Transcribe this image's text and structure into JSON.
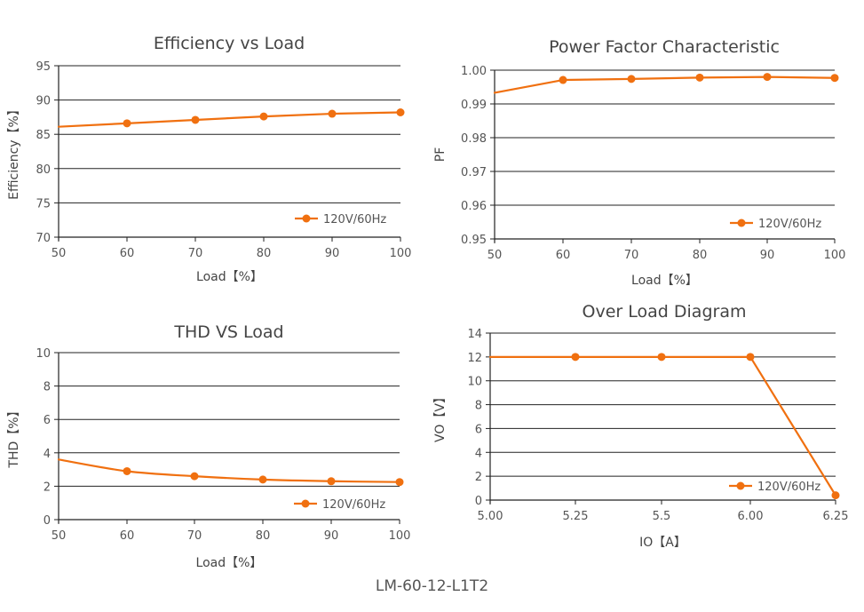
{
  "footer": "LM-60-12-L1T2",
  "accent_color": "#f07010",
  "chart_data": [
    {
      "type": "line",
      "title": "Efficiency vs Load",
      "xlabel": "Load【%】",
      "ylabel": "Efficiency【%】",
      "x": [
        50,
        60,
        70,
        80,
        90,
        100
      ],
      "xticks": [
        50,
        60,
        70,
        80,
        90,
        100
      ],
      "xtick_labels": [
        "50",
        "60",
        "70",
        "80",
        "90",
        "100"
      ],
      "xlim": [
        50,
        100
      ],
      "yticks": [
        70,
        75,
        80,
        85,
        90,
        95
      ],
      "ytick_labels": [
        "70",
        "75",
        "80",
        "85",
        "90",
        "95"
      ],
      "ylim": [
        70,
        95
      ],
      "grid": true,
      "legend_position": "lower-right",
      "series": [
        {
          "name": "120V/60Hz",
          "values": [
            86.1,
            86.6,
            87.1,
            87.6,
            88.0,
            88.2
          ],
          "markers": [
            false,
            true,
            true,
            true,
            true,
            true
          ]
        }
      ]
    },
    {
      "type": "line",
      "title": "Power Factor Characteristic",
      "xlabel": "Load【%】",
      "ylabel": "PF",
      "x": [
        50,
        60,
        70,
        80,
        90,
        100
      ],
      "xticks": [
        50,
        60,
        70,
        80,
        90,
        100
      ],
      "xtick_labels": [
        "50",
        "60",
        "70",
        "80",
        "90",
        "100"
      ],
      "xlim": [
        50,
        100
      ],
      "yticks": [
        0.95,
        0.96,
        0.97,
        0.98,
        0.99,
        1.0
      ],
      "ytick_labels": [
        "0.95",
        "0.96",
        "0.97",
        "0.98",
        "0.99",
        "1.00"
      ],
      "ylim": [
        0.95,
        1.0
      ],
      "grid": true,
      "legend_position": "lower-right",
      "series": [
        {
          "name": "120V/60Hz",
          "values": [
            0.9933,
            0.9971,
            0.9974,
            0.9978,
            0.998,
            0.9977
          ],
          "markers": [
            false,
            true,
            true,
            true,
            true,
            true
          ]
        }
      ]
    },
    {
      "type": "line",
      "title": "THD VS Load",
      "xlabel": "Load【%】",
      "ylabel": "THD【%】",
      "x": [
        50,
        60,
        70,
        80,
        90,
        100
      ],
      "xticks": [
        50,
        60,
        70,
        80,
        90,
        100
      ],
      "xtick_labels": [
        "50",
        "60",
        "70",
        "80",
        "90",
        "100"
      ],
      "xlim": [
        50,
        100
      ],
      "yticks": [
        0,
        2,
        4,
        6,
        8,
        10
      ],
      "ytick_labels": [
        "0",
        "2",
        "4",
        "6",
        "8",
        "10"
      ],
      "ylim": [
        0,
        10
      ],
      "grid": true,
      "smooth": true,
      "legend_position": "lower-right",
      "series": [
        {
          "name": "120V/60Hz",
          "values": [
            3.6,
            2.9,
            2.6,
            2.4,
            2.3,
            2.25
          ],
          "markers": [
            false,
            true,
            true,
            true,
            true,
            true
          ]
        }
      ]
    },
    {
      "type": "line",
      "title": "Over Load Diagram",
      "xlabel": "IO【A】",
      "ylabel": "VO【V】",
      "x": [
        5.0,
        5.25,
        5.5,
        6.0,
        6.25
      ],
      "xticks": [
        5.0,
        5.25,
        5.5,
        6.0,
        6.25
      ],
      "xtick_labels": [
        "5.00",
        "5.25",
        "5.5",
        "6.00",
        "6.25"
      ],
      "xlim": [
        5.0,
        6.25
      ],
      "yticks": [
        0,
        2,
        4,
        6,
        8,
        10,
        12,
        14
      ],
      "ytick_labels": [
        "0",
        "2",
        "4",
        "6",
        "8",
        "10",
        "12",
        "14"
      ],
      "ylim": [
        0,
        14
      ],
      "grid": true,
      "legend_position": "lower-right",
      "series": [
        {
          "name": "120V/60Hz",
          "values": [
            12,
            12,
            12,
            12,
            0.4
          ],
          "markers": [
            false,
            true,
            true,
            true,
            true
          ]
        }
      ]
    }
  ]
}
